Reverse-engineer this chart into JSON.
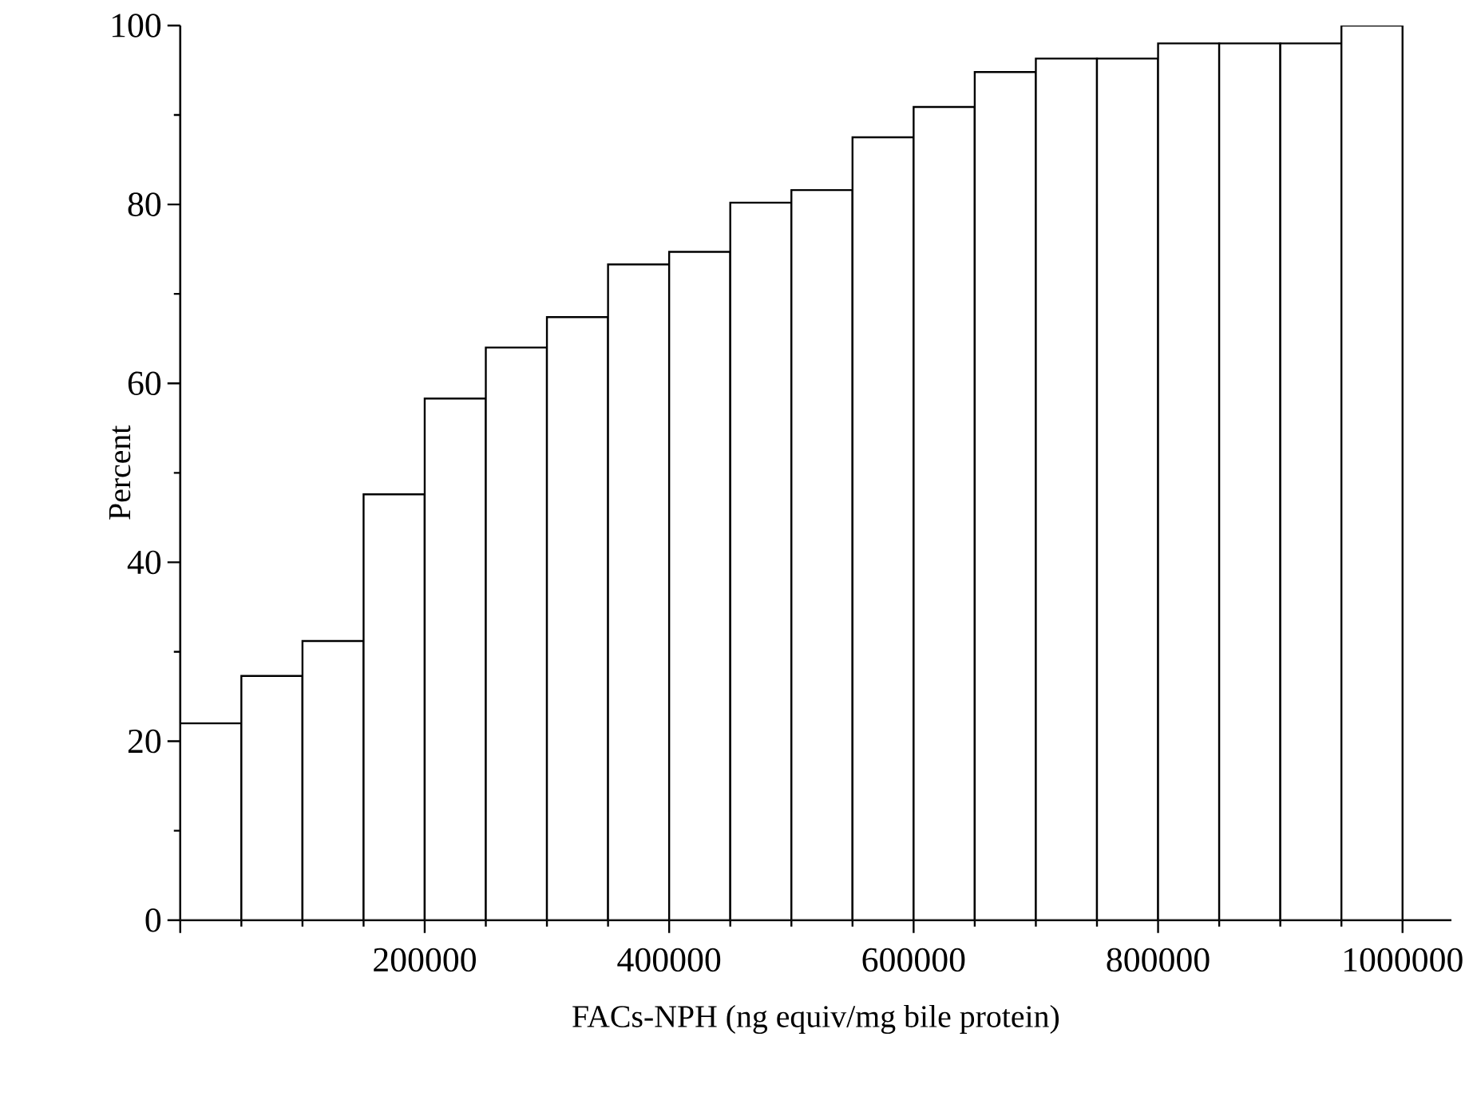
{
  "chart_data": {
    "type": "histogram",
    "xlabel": "FACs-NPH (ng equiv/mg bile protein)",
    "ylabel": "Percent",
    "bins": [
      0,
      50000,
      100000,
      150000,
      200000,
      250000,
      300000,
      350000,
      400000,
      450000,
      500000,
      550000,
      600000,
      650000,
      700000,
      750000,
      800000,
      850000,
      900000,
      950000,
      1000000
    ],
    "values": [
      22,
      27.3,
      31.2,
      47.6,
      58.3,
      64,
      67.4,
      73.3,
      74.7,
      80.2,
      81.6,
      87.5,
      90.9,
      94.8,
      96.3,
      96.3,
      98,
      98,
      98,
      100
    ],
    "color": "#ffffff",
    "xlim": [
      0,
      1040000
    ],
    "ylim": [
      0,
      100
    ],
    "xticks": [
      {
        "value": 0,
        "label": null
      },
      200000,
      400000,
      600000,
      800000,
      1000000
    ],
    "yticks": [
      0,
      20,
      40,
      60,
      80,
      100
    ]
  }
}
